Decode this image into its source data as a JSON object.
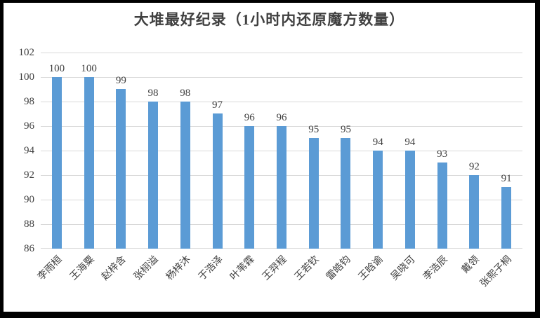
{
  "chart_data": {
    "type": "bar",
    "title": "大堆最好纪录（1小时内还原魔方数量）",
    "categories": [
      "李雨桓",
      "王海粟",
      "赵梓含",
      "张栩溢",
      "杨梓沐",
      "于浩泽",
      "叶苇霖",
      "王羿程",
      "王若钦",
      "雷皓钧",
      "王晗谕",
      "吴晓可",
      "李浩辰",
      "戴领",
      "张熙子桐"
    ],
    "values": [
      100,
      100,
      99,
      98,
      98,
      97,
      96,
      96,
      95,
      95,
      94,
      94,
      93,
      92,
      91
    ],
    "xlabel": "",
    "ylabel": "",
    "ylim": [
      86,
      102
    ],
    "yticks": [
      86,
      88,
      90,
      92,
      94,
      96,
      98,
      100,
      102
    ],
    "grid": true,
    "legend": "none",
    "data_labels": true,
    "x_label_rotation_deg": 45,
    "colors": {
      "bar": "#5B9BD5",
      "text": "#404040",
      "gridline": "#D9D9D9",
      "background": "#FFFFFF",
      "frame_border": "#000000"
    }
  }
}
